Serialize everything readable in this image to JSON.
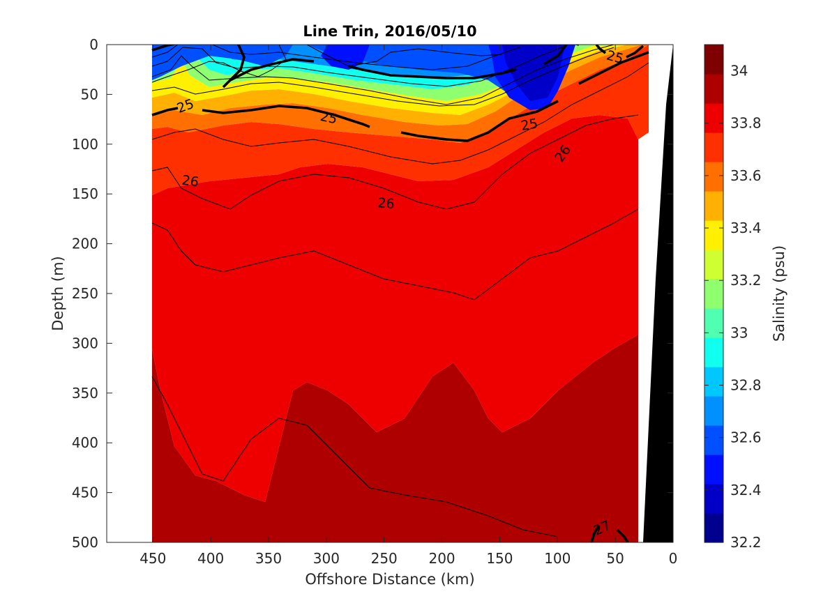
{
  "chart_data": {
    "type": "contour",
    "title": "Line Trin, 2016/05/10",
    "xlabel": "Offshore Distance (km)",
    "ylabel": "Depth (m)",
    "xlim": [
      490,
      0
    ],
    "ylim": [
      500,
      0
    ],
    "x_ticks": [
      "450",
      "400",
      "350",
      "300",
      "250",
      "200",
      "150",
      "100",
      "50",
      "0"
    ],
    "y_ticks": [
      "0",
      "50",
      "100",
      "150",
      "200",
      "250",
      "300",
      "350",
      "400",
      "450",
      "500"
    ],
    "x_tick_values": [
      450,
      400,
      350,
      300,
      250,
      200,
      150,
      100,
      50,
      0
    ],
    "y_tick_values": [
      0,
      50,
      100,
      150,
      200,
      250,
      300,
      350,
      400,
      450,
      500
    ],
    "colorbar": {
      "label": "Salinity (psu)",
      "range": [
        32.2,
        34.1
      ],
      "tick_labels": [
        "32.2",
        "32.4",
        "32.6",
        "32.8",
        "33",
        "33.2",
        "33.4",
        "33.6",
        "33.8",
        "34"
      ],
      "tick_values": [
        32.2,
        32.4,
        32.6,
        32.8,
        33.0,
        33.2,
        33.4,
        33.6,
        33.8,
        34.0
      ],
      "levels": [
        32.2,
        32.3,
        32.4,
        32.5,
        32.6,
        32.7,
        32.8,
        32.9,
        33.0,
        33.1,
        33.2,
        33.3,
        33.4,
        33.5,
        33.6,
        33.7,
        33.8,
        33.9,
        34.0,
        34.1
      ],
      "colors": [
        "#00008f",
        "#0000c8",
        "#0010ff",
        "#0050ff",
        "#0090ff",
        "#00c8ff",
        "#10ffef",
        "#50ffaf",
        "#90ff6f",
        "#cfff30",
        "#ffef00",
        "#ffb000",
        "#ff7000",
        "#ff3000",
        "#ef0000",
        "#af0000",
        "#7f0000"
      ]
    },
    "density_contours": [
      {
        "label": "25",
        "bold": true,
        "label_positions": [
          [
            425,
            60
          ],
          [
            300,
            73
          ],
          [
            125,
            81
          ],
          [
            55,
            12
          ]
        ]
      },
      {
        "label": "26",
        "bold": true,
        "label_positions": [
          [
            422,
            133
          ],
          [
            245,
            160
          ],
          [
            88,
            108
          ]
        ]
      },
      {
        "label": "27",
        "bold": true,
        "label_positions": [
          [
            60,
            480
          ]
        ]
      }
    ],
    "bathymetry_color": "#000000"
  }
}
